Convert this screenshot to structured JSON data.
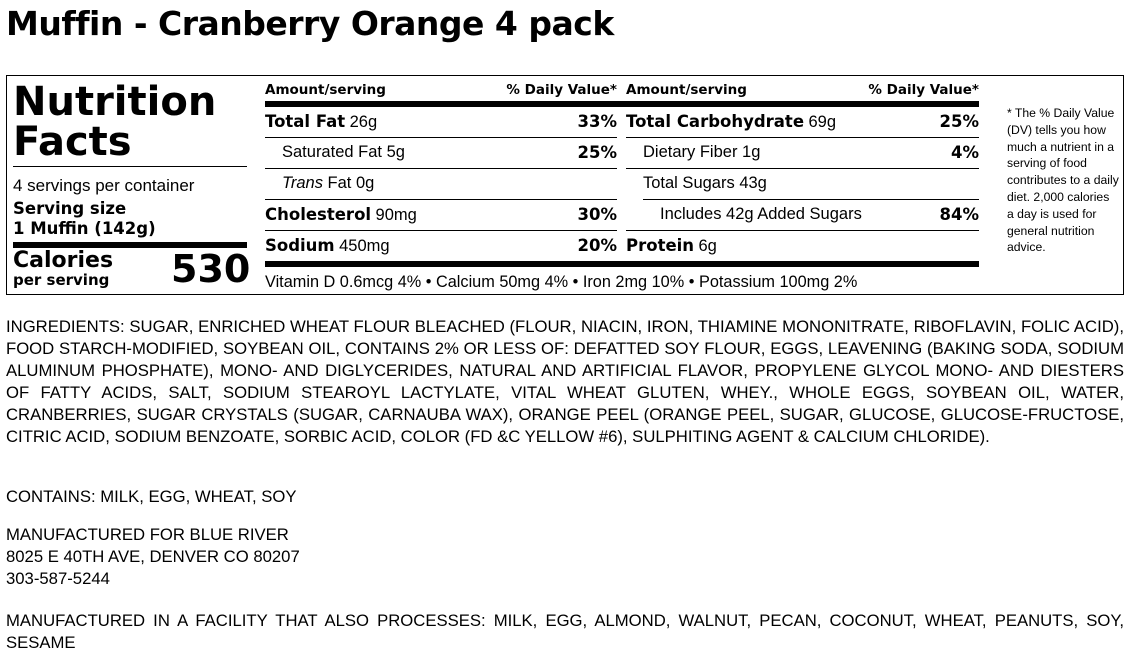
{
  "title": "Muffin - Cranberry Orange 4 pack",
  "nf": {
    "heading1": "Nutrition",
    "heading2": "Facts",
    "servings": "4 servings per container",
    "serving_size_label": "Serving size",
    "serving_size_value": "1 Muffin (142g)",
    "calories_label": "Calories",
    "calories_sub": "per serving",
    "calories_value": "530",
    "col_amount": "Amount/serving",
    "col_dv": "% Daily Value*",
    "left": [
      {
        "name": "Total Fat",
        "amount": "26g",
        "dv": "33%"
      },
      {
        "name": "Saturated Fat",
        "amount": "5g",
        "dv": "25%"
      },
      {
        "name_italic": "Trans",
        "amount": "Fat 0g",
        "dv": ""
      },
      {
        "name": "Cholesterol",
        "amount": "90mg",
        "dv": "30%"
      },
      {
        "name": "Sodium",
        "amount": "450mg",
        "dv": "20%"
      }
    ],
    "right": [
      {
        "name": "Total Carbohydrate",
        "amount": "69g",
        "dv": "25%"
      },
      {
        "name": "Dietary Fiber",
        "amount": "1g",
        "dv": "4%"
      },
      {
        "name": "Total Sugars",
        "amount": "43g",
        "dv": ""
      },
      {
        "name": "Includes 42g Added Sugars",
        "amount": "",
        "dv": "84%"
      },
      {
        "name": "Protein",
        "amount": "6g",
        "dv": ""
      }
    ],
    "vitamins": "Vitamin D 0.6mcg 4% • Calcium 50mg 4% • Iron 2mg 10% • Potassium 100mg 2%",
    "footnote": "* The % Daily Value (DV) tells you how much a nutrient in a serving of food contributes to a daily diet. 2,000 calories a day is used for general nutrition advice."
  },
  "ingredients": "INGREDIENTS: SUGAR, ENRICHED WHEAT FLOUR BLEACHED (FLOUR, NIACIN, IRON, THIAMINE MONONITRATE, RIBOFLAVIN, FOLIC ACID), FOOD STARCH-MODIFIED, SOYBEAN OIL, CONTAINS 2% OR LESS OF: DEFATTED SOY FLOUR, EGGS, LEAVENING (BAKING SODA, SODIUM ALUMINUM PHOSPHATE), MONO- AND DIGLYCERIDES, NATURAL AND ARTIFICIAL FLAVOR, PROPYLENE GLYCOL MONO- AND DIESTERS OF FATTY ACIDS, SALT, SODIUM STEAROYL LACTYLATE, VITAL WHEAT GLUTEN, WHEY., WHOLE EGGS, SOYBEAN OIL, WATER, CRANBERRIES, SUGAR CRYSTALS (SUGAR, CARNAUBA WAX), ORANGE PEEL (ORANGE PEEL, SUGAR, GLUCOSE, GLUCOSE-FRUCTOSE, CITRIC ACID, SODIUM BENZOATE, SORBIC ACID, COLOR (FD &C YELLOW #6), SULPHITING AGENT & CALCIUM CHLORIDE).",
  "contains": "CONTAINS: MILK, EGG, WHEAT, SOY",
  "manufacturer": {
    "line1": "MANUFACTURED FOR BLUE RIVER",
    "line2": "8025 E 40TH AVE, DENVER CO 80207",
    "line3": "303-587-5244"
  },
  "facility": "MANUFACTURED IN A FACILITY THAT ALSO PROCESSES: MILK, EGG, ALMOND, WALNUT, PECAN, COCONUT, WHEAT, PEANUTS, SOY, SESAME"
}
